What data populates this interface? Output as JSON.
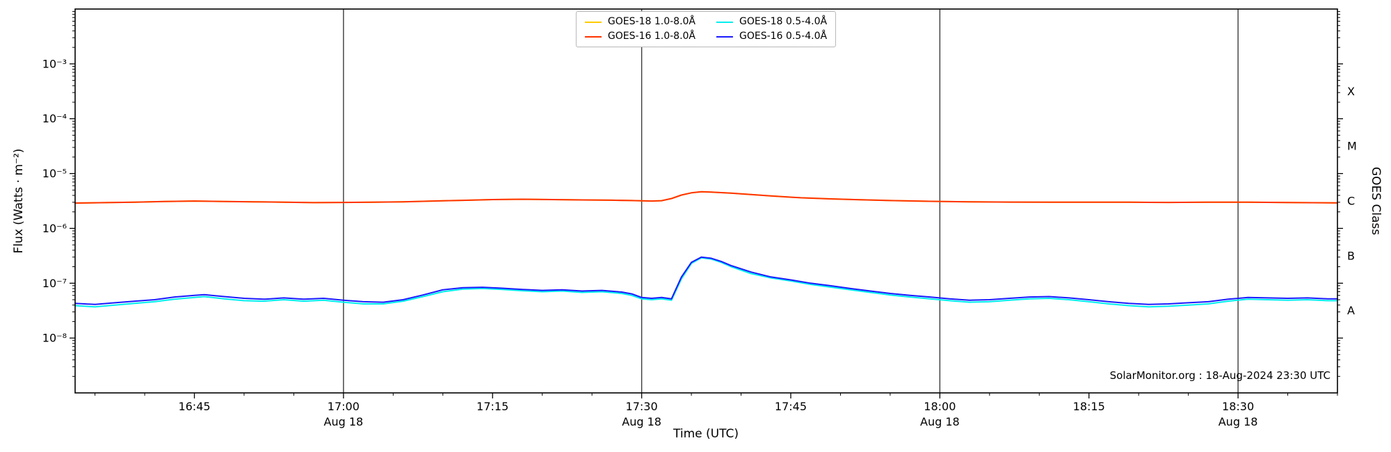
{
  "page": {
    "background": "#ffffff"
  },
  "chart_data": {
    "type": "line",
    "title": "",
    "xlabel": "Time (UTC)",
    "ylabel": "Flux (Watts · m⁻²)",
    "ylabel_right": "GOES Class",
    "annotation": "SolarMonitor.org : 18-Aug-2024 23:30 UTC",
    "grid_on": true,
    "grid_color": "#3a3a3a",
    "legend_position": "top-center",
    "x_axis": {
      "unit": "minutes since 16:33 UTC, Aug 18 2024",
      "domain": [
        0,
        127
      ],
      "minor_tick_start": 2,
      "minor_tick_step": 5,
      "vertical_lines": [
        27,
        57,
        87,
        117
      ],
      "major_ticks": [
        {
          "minute": 12,
          "label": "16:45",
          "sublabel": ""
        },
        {
          "minute": 27,
          "label": "17:00",
          "sublabel": "Aug 18"
        },
        {
          "minute": 42,
          "label": "17:15",
          "sublabel": ""
        },
        {
          "minute": 57,
          "label": "17:30",
          "sublabel": "Aug 18"
        },
        {
          "minute": 72,
          "label": "17:45",
          "sublabel": ""
        },
        {
          "minute": 87,
          "label": "18:00",
          "sublabel": "Aug 18"
        },
        {
          "minute": 102,
          "label": "18:15",
          "sublabel": ""
        },
        {
          "minute": 117,
          "label": "18:30",
          "sublabel": "Aug 18"
        }
      ]
    },
    "y_axis": {
      "scale": "log",
      "domain": [
        1e-09,
        0.01
      ],
      "major_ticks": [
        {
          "exp": -3,
          "label": "10⁻³"
        },
        {
          "exp": -4,
          "label": "10⁻⁴"
        },
        {
          "exp": -5,
          "label": "10⁻⁵"
        },
        {
          "exp": -6,
          "label": "10⁻⁶"
        },
        {
          "exp": -7,
          "label": "10⁻⁷"
        },
        {
          "exp": -8,
          "label": "10⁻⁸"
        }
      ],
      "class_labels": [
        {
          "label": "X",
          "exp": -3.5
        },
        {
          "label": "M",
          "exp": -4.5
        },
        {
          "label": "C",
          "exp": -5.5
        },
        {
          "label": "B",
          "exp": -6.5
        },
        {
          "label": "A",
          "exp": -7.5
        }
      ]
    },
    "series": [
      {
        "id": "goes18-long",
        "label": "GOES-18 1.0-8.0Å",
        "color": "#ffcc00",
        "points": [
          [
            0,
            2.9e-06
          ],
          [
            3,
            2.95e-06
          ],
          [
            6,
            3e-06
          ],
          [
            9,
            3.1e-06
          ],
          [
            12,
            3.15e-06
          ],
          [
            15,
            3.1e-06
          ],
          [
            18,
            3.05e-06
          ],
          [
            21,
            3e-06
          ],
          [
            24,
            2.95e-06
          ],
          [
            27,
            2.97e-06
          ],
          [
            30,
            3e-06
          ],
          [
            33,
            3.05e-06
          ],
          [
            36,
            3.15e-06
          ],
          [
            39,
            3.25e-06
          ],
          [
            42,
            3.35e-06
          ],
          [
            45,
            3.4e-06
          ],
          [
            48,
            3.35e-06
          ],
          [
            51,
            3.3e-06
          ],
          [
            54,
            3.27e-06
          ],
          [
            56,
            3.22e-06
          ],
          [
            58,
            3.15e-06
          ],
          [
            59,
            3.2e-06
          ],
          [
            60,
            3.5e-06
          ],
          [
            61,
            4.05e-06
          ],
          [
            62,
            4.45e-06
          ],
          [
            63,
            4.65e-06
          ],
          [
            64,
            4.6e-06
          ],
          [
            66,
            4.4e-06
          ],
          [
            68,
            4.15e-06
          ],
          [
            70,
            3.9e-06
          ],
          [
            73,
            3.62e-06
          ],
          [
            76,
            3.45e-06
          ],
          [
            79,
            3.32e-06
          ],
          [
            82,
            3.22e-06
          ],
          [
            86,
            3.12e-06
          ],
          [
            90,
            3.05e-06
          ],
          [
            94,
            3.02e-06
          ],
          [
            98,
            3e-06
          ],
          [
            102,
            3e-06
          ],
          [
            106,
            3e-06
          ],
          [
            110,
            2.97e-06
          ],
          [
            114,
            3e-06
          ],
          [
            118,
            3e-06
          ],
          [
            122,
            2.96e-06
          ],
          [
            127,
            2.92e-06
          ]
        ]
      },
      {
        "id": "goes16-long",
        "label": "GOES-16 1.0-8.0Å",
        "color": "#ff3300",
        "points": [
          [
            0,
            2.9e-06
          ],
          [
            3,
            2.95e-06
          ],
          [
            6,
            3e-06
          ],
          [
            9,
            3.1e-06
          ],
          [
            12,
            3.15e-06
          ],
          [
            15,
            3.1e-06
          ],
          [
            18,
            3.05e-06
          ],
          [
            21,
            3e-06
          ],
          [
            24,
            2.95e-06
          ],
          [
            27,
            2.97e-06
          ],
          [
            30,
            3e-06
          ],
          [
            33,
            3.05e-06
          ],
          [
            36,
            3.15e-06
          ],
          [
            39,
            3.25e-06
          ],
          [
            42,
            3.35e-06
          ],
          [
            45,
            3.4e-06
          ],
          [
            48,
            3.35e-06
          ],
          [
            51,
            3.3e-06
          ],
          [
            54,
            3.27e-06
          ],
          [
            56,
            3.22e-06
          ],
          [
            58,
            3.15e-06
          ],
          [
            59,
            3.2e-06
          ],
          [
            60,
            3.5e-06
          ],
          [
            61,
            4.05e-06
          ],
          [
            62,
            4.45e-06
          ],
          [
            63,
            4.65e-06
          ],
          [
            64,
            4.6e-06
          ],
          [
            66,
            4.4e-06
          ],
          [
            68,
            4.15e-06
          ],
          [
            70,
            3.9e-06
          ],
          [
            73,
            3.62e-06
          ],
          [
            76,
            3.45e-06
          ],
          [
            79,
            3.32e-06
          ],
          [
            82,
            3.22e-06
          ],
          [
            86,
            3.12e-06
          ],
          [
            90,
            3.05e-06
          ],
          [
            94,
            3.02e-06
          ],
          [
            98,
            3e-06
          ],
          [
            102,
            3e-06
          ],
          [
            106,
            3e-06
          ],
          [
            110,
            2.97e-06
          ],
          [
            114,
            3e-06
          ],
          [
            118,
            3e-06
          ],
          [
            122,
            2.96e-06
          ],
          [
            127,
            2.92e-06
          ]
        ]
      },
      {
        "id": "goes18-short",
        "label": "GOES-18 0.5-4.0Å",
        "color": "#00eeee",
        "points": [
          [
            0,
            3.9e-08
          ],
          [
            2,
            3.7e-08
          ],
          [
            4,
            4e-08
          ],
          [
            6,
            4.3e-08
          ],
          [
            8,
            4.6e-08
          ],
          [
            10,
            5.1e-08
          ],
          [
            12,
            5.5e-08
          ],
          [
            13,
            5.7e-08
          ],
          [
            15,
            5.2e-08
          ],
          [
            17,
            4.8e-08
          ],
          [
            19,
            4.7e-08
          ],
          [
            21,
            5e-08
          ],
          [
            23,
            4.7e-08
          ],
          [
            25,
            4.9e-08
          ],
          [
            27,
            4.5e-08
          ],
          [
            29,
            4.2e-08
          ],
          [
            31,
            4.2e-08
          ],
          [
            33,
            4.7e-08
          ],
          [
            35,
            5.7e-08
          ],
          [
            37,
            7e-08
          ],
          [
            39,
            7.8e-08
          ],
          [
            41,
            8e-08
          ],
          [
            43,
            7.7e-08
          ],
          [
            45,
            7.3e-08
          ],
          [
            47,
            7e-08
          ],
          [
            49,
            7.2e-08
          ],
          [
            51,
            6.8e-08
          ],
          [
            53,
            7e-08
          ],
          [
            55,
            6.5e-08
          ],
          [
            56,
            6e-08
          ],
          [
            57,
            5.2e-08
          ],
          [
            58,
            5e-08
          ],
          [
            59,
            5.2e-08
          ],
          [
            60,
            4.9e-08
          ],
          [
            61,
            1.2e-07
          ],
          [
            62,
            2.3e-07
          ],
          [
            63,
            2.9e-07
          ],
          [
            64,
            2.75e-07
          ],
          [
            65,
            2.4e-07
          ],
          [
            66,
            2e-07
          ],
          [
            68,
            1.5e-07
          ],
          [
            70,
            1.25e-07
          ],
          [
            72,
            1.1e-07
          ],
          [
            74,
            9.5e-08
          ],
          [
            76,
            8.5e-08
          ],
          [
            78,
            7.6e-08
          ],
          [
            80,
            6.8e-08
          ],
          [
            82,
            6.1e-08
          ],
          [
            84,
            5.6e-08
          ],
          [
            86,
            5.2e-08
          ],
          [
            88,
            4.8e-08
          ],
          [
            90,
            4.5e-08
          ],
          [
            92,
            4.6e-08
          ],
          [
            94,
            4.9e-08
          ],
          [
            96,
            5.2e-08
          ],
          [
            98,
            5.3e-08
          ],
          [
            100,
            5e-08
          ],
          [
            102,
            4.6e-08
          ],
          [
            104,
            4.2e-08
          ],
          [
            106,
            3.9e-08
          ],
          [
            108,
            3.7e-08
          ],
          [
            110,
            3.8e-08
          ],
          [
            112,
            4e-08
          ],
          [
            114,
            4.2e-08
          ],
          [
            116,
            4.7e-08
          ],
          [
            118,
            5.1e-08
          ],
          [
            120,
            5e-08
          ],
          [
            122,
            4.9e-08
          ],
          [
            124,
            5e-08
          ],
          [
            126,
            4.8e-08
          ],
          [
            127,
            4.8e-08
          ]
        ]
      },
      {
        "id": "goes16-short",
        "label": "GOES-16 0.5-4.0Å",
        "color": "#1a1aff",
        "points": [
          [
            0,
            4.3e-08
          ],
          [
            2,
            4.1e-08
          ],
          [
            4,
            4.4e-08
          ],
          [
            6,
            4.7e-08
          ],
          [
            8,
            5e-08
          ],
          [
            10,
            5.6e-08
          ],
          [
            12,
            6e-08
          ],
          [
            13,
            6.2e-08
          ],
          [
            15,
            5.7e-08
          ],
          [
            17,
            5.3e-08
          ],
          [
            19,
            5.1e-08
          ],
          [
            21,
            5.4e-08
          ],
          [
            23,
            5.1e-08
          ],
          [
            25,
            5.3e-08
          ],
          [
            27,
            4.9e-08
          ],
          [
            29,
            4.6e-08
          ],
          [
            31,
            4.5e-08
          ],
          [
            33,
            5e-08
          ],
          [
            35,
            6.1e-08
          ],
          [
            37,
            7.6e-08
          ],
          [
            39,
            8.3e-08
          ],
          [
            41,
            8.45e-08
          ],
          [
            43,
            8.1e-08
          ],
          [
            45,
            7.7e-08
          ],
          [
            47,
            7.4e-08
          ],
          [
            49,
            7.6e-08
          ],
          [
            51,
            7.2e-08
          ],
          [
            53,
            7.4e-08
          ],
          [
            55,
            6.9e-08
          ],
          [
            56,
            6.4e-08
          ],
          [
            57,
            5.5e-08
          ],
          [
            58,
            5.3e-08
          ],
          [
            59,
            5.5e-08
          ],
          [
            60,
            5.2e-08
          ],
          [
            61,
            1.3e-07
          ],
          [
            62,
            2.4e-07
          ],
          [
            63,
            3e-07
          ],
          [
            64,
            2.85e-07
          ],
          [
            65,
            2.5e-07
          ],
          [
            66,
            2.1e-07
          ],
          [
            68,
            1.6e-07
          ],
          [
            70,
            1.3e-07
          ],
          [
            72,
            1.15e-07
          ],
          [
            74,
            1e-07
          ],
          [
            76,
            9e-08
          ],
          [
            78,
            8e-08
          ],
          [
            80,
            7.2e-08
          ],
          [
            82,
            6.5e-08
          ],
          [
            84,
            6e-08
          ],
          [
            86,
            5.6e-08
          ],
          [
            88,
            5.2e-08
          ],
          [
            90,
            4.9e-08
          ],
          [
            92,
            5e-08
          ],
          [
            94,
            5.3e-08
          ],
          [
            96,
            5.6e-08
          ],
          [
            98,
            5.7e-08
          ],
          [
            100,
            5.4e-08
          ],
          [
            102,
            5e-08
          ],
          [
            104,
            4.6e-08
          ],
          [
            106,
            4.3e-08
          ],
          [
            108,
            4.1e-08
          ],
          [
            110,
            4.2e-08
          ],
          [
            112,
            4.4e-08
          ],
          [
            114,
            4.6e-08
          ],
          [
            116,
            5.1e-08
          ],
          [
            118,
            5.5e-08
          ],
          [
            120,
            5.4e-08
          ],
          [
            122,
            5.3e-08
          ],
          [
            124,
            5.4e-08
          ],
          [
            126,
            5.2e-08
          ],
          [
            127,
            5.2e-08
          ]
        ]
      }
    ]
  }
}
